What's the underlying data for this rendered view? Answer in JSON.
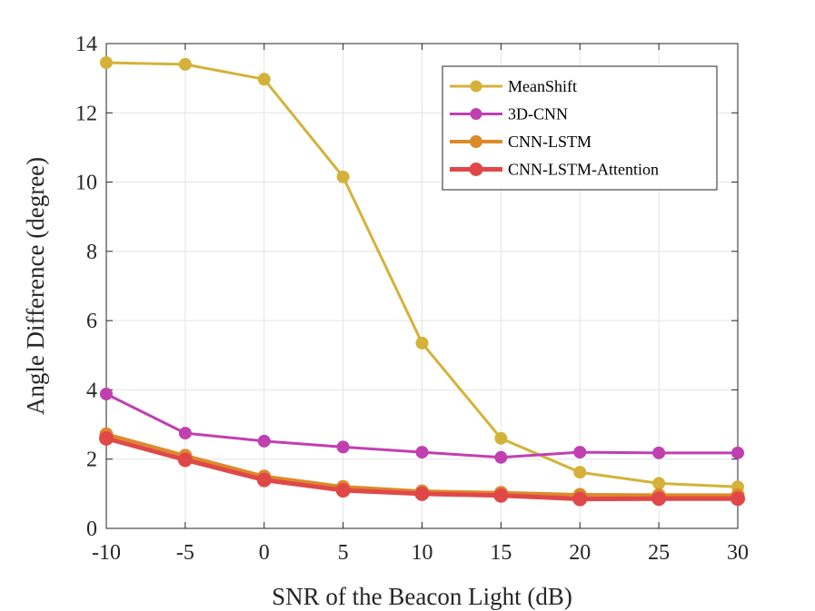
{
  "chart_data": {
    "type": "line",
    "title": "",
    "xlabel": "SNR of the Beacon Light (dB)",
    "ylabel": "Angle Difference (degree)",
    "x": [
      -10,
      -5,
      0,
      5,
      10,
      15,
      20,
      25,
      30
    ],
    "xticks": [
      -10,
      -5,
      0,
      5,
      10,
      15,
      20,
      25,
      30
    ],
    "xtick_labels": [
      "-10",
      "-5",
      "0",
      "5",
      "10",
      "15",
      "20",
      "25",
      "30"
    ],
    "yticks": [
      0,
      2,
      4,
      6,
      8,
      10,
      12,
      14
    ],
    "ytick_labels": [
      "0",
      "2",
      "4",
      "6",
      "8",
      "10",
      "12",
      "14"
    ],
    "xlim": [
      -10,
      30
    ],
    "ylim": [
      0,
      14
    ],
    "grid": true,
    "legend_position": "top-right",
    "series": [
      {
        "name": "MeanShift",
        "color": "#d4b23a",
        "values": [
          13.45,
          13.4,
          12.97,
          10.15,
          5.35,
          2.6,
          1.62,
          1.3,
          1.2
        ]
      },
      {
        "name": "3D-CNN",
        "color": "#c040b0",
        "values": [
          3.88,
          2.75,
          2.52,
          2.35,
          2.2,
          2.05,
          2.2,
          2.18,
          2.18
        ]
      },
      {
        "name": "CNN-LSTM",
        "color": "#dd8a2a",
        "values": [
          2.72,
          2.1,
          1.5,
          1.2,
          1.07,
          1.03,
          0.97,
          0.96,
          0.96
        ]
      },
      {
        "name": "CNN-LSTM-Attention",
        "color": "#e04848",
        "values": [
          2.6,
          1.98,
          1.4,
          1.1,
          1.0,
          0.95,
          0.85,
          0.86,
          0.86
        ]
      }
    ]
  }
}
